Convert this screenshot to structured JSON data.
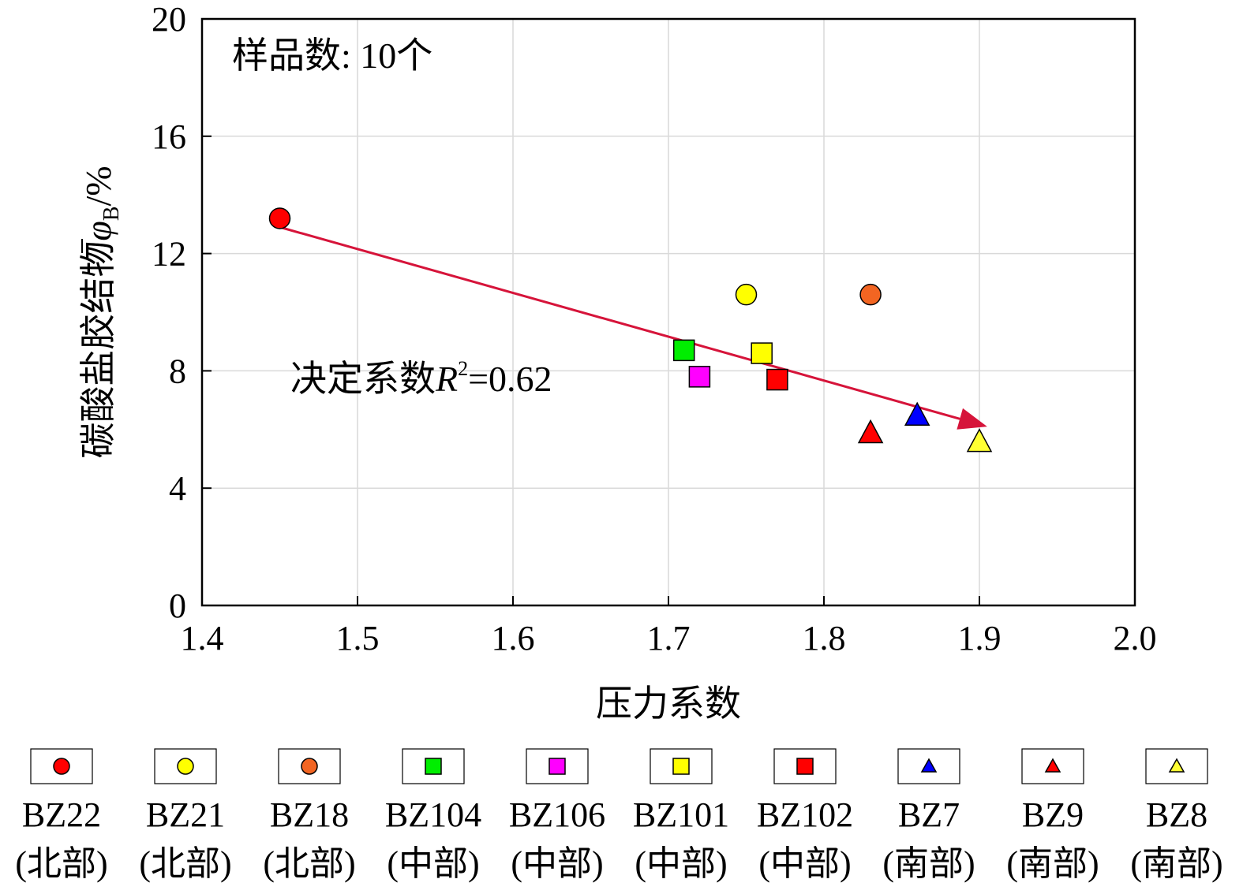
{
  "chart_data": {
    "type": "scatter",
    "title": "",
    "xlabel": "压力系数",
    "ylabel": "碳酸盐胶结物",
    "ylabel_symbol": "φ",
    "ylabel_subscript": "B",
    "ylabel_unit": "/%",
    "xlim": [
      1.4,
      2.0
    ],
    "ylim": [
      0,
      20
    ],
    "x_ticks": [
      "1.4",
      "1.5",
      "1.6",
      "1.7",
      "1.8",
      "1.9",
      "2.0"
    ],
    "y_ticks": [
      "0",
      "4",
      "8",
      "12",
      "16",
      "20"
    ],
    "grid": true,
    "legend_position": "bottom",
    "annotations": {
      "sample_count": "样品数: 10个",
      "r2_prefix": "决定系数",
      "r2_symbol": "R",
      "r2_exponent": "2",
      "r2_value": "=0.62"
    },
    "trend": {
      "x0": 1.45,
      "y0": 12.9,
      "x1": 1.905,
      "y1": 6.1,
      "color": "#d6143a"
    },
    "series": [
      {
        "name": "BZ22",
        "region": "(北部)",
        "marker": "circle",
        "color": "#ff0000",
        "x": 1.45,
        "y": 13.2
      },
      {
        "name": "BZ21",
        "region": "(北部)",
        "marker": "circle",
        "color": "#ffff00",
        "x": 1.75,
        "y": 10.6
      },
      {
        "name": "BZ18",
        "region": "(北部)",
        "marker": "circle",
        "color": "#f26522",
        "x": 1.83,
        "y": 10.6
      },
      {
        "name": "BZ104",
        "region": "(中部)",
        "marker": "square",
        "color": "#00ee00",
        "x": 1.71,
        "y": 8.7
      },
      {
        "name": "BZ106",
        "region": "(中部)",
        "marker": "square",
        "color": "#ff00ff",
        "x": 1.72,
        "y": 7.8
      },
      {
        "name": "BZ101",
        "region": "(中部)",
        "marker": "square",
        "color": "#ffff00",
        "x": 1.76,
        "y": 8.6
      },
      {
        "name": "BZ102",
        "region": "(中部)",
        "marker": "square",
        "color": "#ff0000",
        "x": 1.77,
        "y": 7.7
      },
      {
        "name": "BZ7",
        "region": "(南部)",
        "marker": "triangle",
        "color": "#0000ff",
        "x": 1.86,
        "y": 6.5
      },
      {
        "name": "BZ9",
        "region": "(南部)",
        "marker": "triangle",
        "color": "#ff0000",
        "x": 1.83,
        "y": 5.9
      },
      {
        "name": "BZ8",
        "region": "(南部)",
        "marker": "triangle",
        "color": "#ffff33",
        "x": 1.9,
        "y": 5.6
      }
    ]
  }
}
